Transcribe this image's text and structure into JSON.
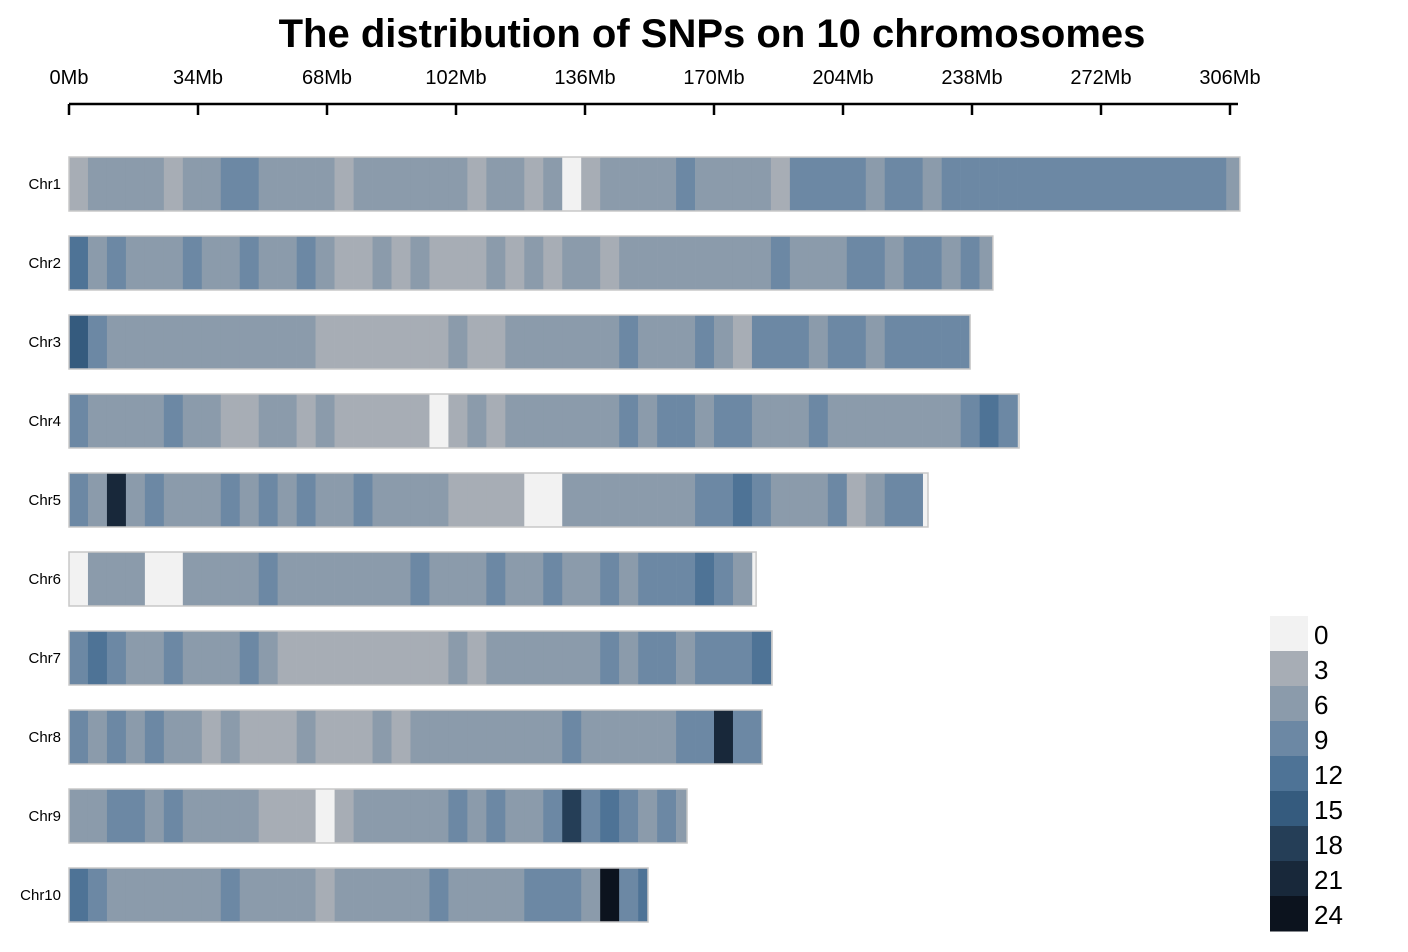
{
  "chart_data": {
    "type": "heatmap",
    "title": "The distribution of SNPs on 10 chromosomes",
    "x_ticks": [
      "0Mb",
      "34Mb",
      "68Mb",
      "102Mb",
      "136Mb",
      "170Mb",
      "204Mb",
      "238Mb",
      "272Mb",
      "306Mb"
    ],
    "x_tick_values": [
      0,
      34,
      68,
      102,
      136,
      170,
      204,
      238,
      272,
      306
    ],
    "xlim": [
      0,
      306
    ],
    "bin_size_mb": 5,
    "legend": {
      "placement": "bottom-right",
      "labels": [
        "0",
        "3",
        "6",
        "9",
        "12",
        "15",
        "18",
        "21",
        "24"
      ],
      "colors": [
        "#f2f2f2",
        "#a7adb5",
        "#8b9bab",
        "#6c88a4",
        "#4e7396",
        "#355b7e",
        "#253e57",
        "#18283a",
        "#0c131e"
      ]
    },
    "chromosomes": [
      {
        "name": "Chr1",
        "length_mb": 308.6,
        "density": [
          3,
          5,
          4,
          5,
          4,
          3,
          5,
          4,
          9,
          7,
          5,
          4,
          5,
          4,
          3,
          6,
          4,
          5,
          4,
          6,
          4,
          3,
          5,
          4,
          3,
          4,
          0,
          1,
          4,
          5,
          6,
          5,
          7,
          6,
          5,
          6,
          5,
          3,
          7,
          8,
          7,
          8,
          6,
          8,
          7,
          6,
          7,
          8,
          9,
          7,
          8,
          7,
          9,
          8,
          9,
          8,
          7,
          9,
          8,
          7,
          8,
          6
        ]
      },
      {
        "name": "Chr2",
        "length_mb": 243.5,
        "density": [
          12,
          6,
          7,
          6,
          5,
          6,
          7,
          5,
          6,
          8,
          5,
          6,
          7,
          6,
          3,
          1,
          4,
          2,
          4,
          1,
          3,
          2,
          4,
          3,
          4,
          3,
          4,
          5,
          3,
          4,
          4,
          5,
          4,
          5,
          6,
          4,
          5,
          7,
          6,
          5,
          6,
          7,
          8,
          6,
          9,
          7,
          6,
          8,
          6
        ]
      },
      {
        "name": "Chr3",
        "length_mb": 237.5,
        "density": [
          14,
          7,
          6,
          5,
          6,
          5,
          4,
          6,
          5,
          4,
          5,
          4,
          5,
          3,
          1,
          3,
          2,
          3,
          2,
          3,
          4,
          3,
          3,
          5,
          4,
          6,
          5,
          4,
          6,
          7,
          6,
          5,
          6,
          7,
          5,
          1,
          9,
          8,
          7,
          6,
          7,
          8,
          6,
          7,
          9,
          8,
          7,
          8
        ]
      },
      {
        "name": "Chr4",
        "length_mb": 250.4,
        "density": [
          7,
          5,
          6,
          4,
          5,
          7,
          6,
          5,
          3,
          2,
          4,
          5,
          3,
          4,
          3,
          2,
          3,
          1,
          1,
          0,
          3,
          4,
          3,
          4,
          5,
          4,
          5,
          6,
          4,
          7,
          6,
          8,
          7,
          6,
          9,
          7,
          5,
          6,
          5,
          7,
          6,
          5,
          4,
          5,
          6,
          5,
          4,
          8,
          10,
          9
        ]
      },
      {
        "name": "Chr5",
        "length_mb": 226.4,
        "density": [
          8,
          6,
          20,
          6,
          7,
          5,
          6,
          5,
          7,
          6,
          7,
          5,
          9,
          6,
          5,
          7,
          6,
          4,
          5,
          4,
          3,
          2,
          1,
          3,
          0,
          0,
          5,
          4,
          5,
          6,
          4,
          5,
          6,
          7,
          8,
          11,
          7,
          5,
          6,
          5,
          7,
          1,
          6,
          7,
          8
        ]
      },
      {
        "name": "Chr6",
        "length_mb": 181.1,
        "density": [
          0,
          5,
          6,
          5,
          0,
          0,
          5,
          6,
          4,
          5,
          7,
          6,
          4,
          5,
          4,
          6,
          5,
          5,
          7,
          6,
          5,
          6,
          7,
          6,
          5,
          7,
          6,
          5,
          7,
          6,
          8,
          9,
          7,
          10,
          9,
          6
        ]
      },
      {
        "name": "Chr7",
        "length_mb": 185.3,
        "density": [
          7,
          12,
          7,
          5,
          6,
          7,
          6,
          5,
          6,
          7,
          6,
          3,
          2,
          1,
          2,
          3,
          1,
          2,
          3,
          2,
          4,
          3,
          5,
          4,
          6,
          5,
          6,
          5,
          7,
          6,
          8,
          7,
          6,
          8,
          7,
          9,
          10
        ]
      },
      {
        "name": "Chr8",
        "length_mb": 182.7,
        "density": [
          8,
          6,
          7,
          6,
          8,
          6,
          5,
          3,
          4,
          3,
          2,
          3,
          4,
          3,
          2,
          3,
          4,
          3,
          4,
          5,
          4,
          6,
          5,
          4,
          6,
          5,
          7,
          6,
          5,
          4,
          6,
          5,
          7,
          8,
          20,
          9,
          7
        ]
      },
      {
        "name": "Chr9",
        "length_mb": 162.9,
        "density": [
          5,
          6,
          8,
          7,
          6,
          7,
          5,
          6,
          5,
          4,
          3,
          1,
          2,
          0,
          2,
          4,
          5,
          4,
          6,
          5,
          7,
          6,
          7,
          6,
          5,
          8,
          16,
          9,
          10,
          8,
          6,
          8,
          6
        ]
      },
      {
        "name": "Chr10",
        "length_mb": 152.6,
        "density": [
          12,
          8,
          6,
          5,
          6,
          5,
          6,
          5,
          7,
          5,
          4,
          6,
          5,
          3,
          4,
          5,
          4,
          6,
          5,
          7,
          5,
          4,
          6,
          5,
          8,
          9,
          7,
          6,
          22,
          9,
          10
        ]
      }
    ]
  }
}
